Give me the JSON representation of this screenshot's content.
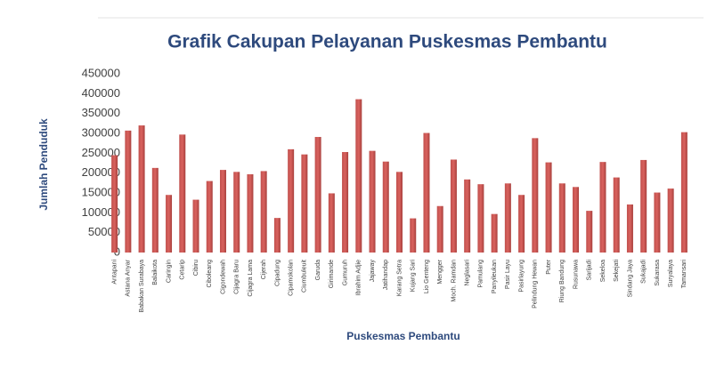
{
  "chart_data": {
    "type": "bar",
    "title": "Grafik Cakupan Pelayanan Puskesmas Pembantu",
    "x_label": "Puskesmas Pembantu",
    "y_label": "Jumlah Penduduk",
    "categories": [
      "Antapani",
      "Astana Anyar",
      "Babakan Surabaya",
      "Balaikota",
      "Caringin",
      "Cetarip",
      "Cibiru",
      "Ciboleang",
      "Cigondewah",
      "Cijagra Baru",
      "Cijagra Lama",
      "Cijerah",
      "Cipadung",
      "Cipamokolan",
      "Ciumbuleuit",
      "Garuda",
      "Girimande",
      "Gumuruh",
      "Ibrahim Adjie",
      "Jajaway",
      "Jatihandap",
      "Karang Setra",
      "Kujang Sari",
      "Lio Genteng",
      "Mengger",
      "Moch. Ramdan",
      "Neglasari",
      "Pamulang",
      "Panyileukan",
      "Pasir Layu",
      "Pasirlayung",
      "Pelindung Hewan",
      "Puter",
      "Riung Bandung",
      "Rusunawa",
      "Sarijadi",
      "Sekeloa",
      "Sekejati",
      "Sindang Jaya",
      "Sukajadi",
      "Sukarasa",
      "Suryalaya",
      "Tamansari"
    ],
    "values": [
      245000,
      307000,
      320000,
      213000,
      145000,
      297000,
      133000,
      180000,
      208000,
      203000,
      197000,
      205000,
      87000,
      260000,
      247000,
      291000,
      149000,
      253000,
      386000,
      256000,
      229000,
      203000,
      86000,
      301000,
      117000,
      234000,
      184000,
      172000,
      97000,
      174000,
      145000,
      288000,
      227000,
      174000,
      165000,
      105000,
      228000,
      189000,
      121000,
      233000,
      151000,
      161000,
      303000
    ],
    "color": "#c0504d",
    "ylim": [
      0,
      450000
    ],
    "yticks": [
      0,
      50000,
      100000,
      150000,
      200000,
      250000,
      300000,
      350000,
      400000,
      450000
    ],
    "grid": false
  }
}
